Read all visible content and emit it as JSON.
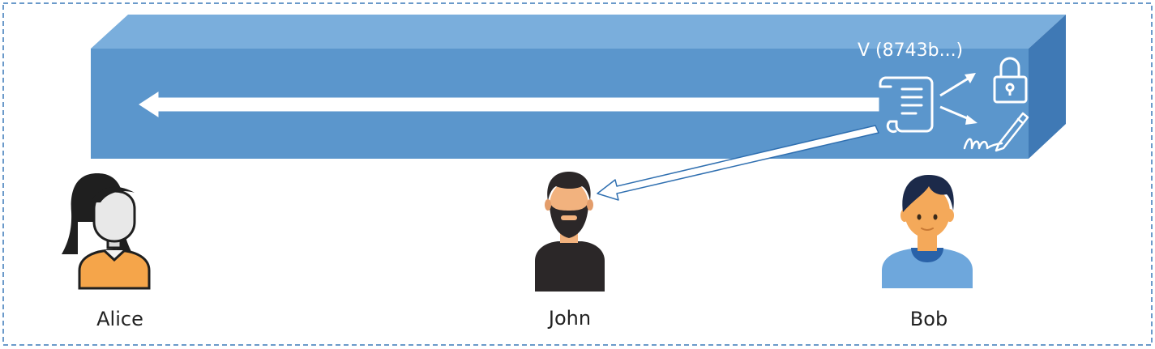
{
  "colors": {
    "frame_border": "#3a78b8",
    "bar_front": "#5b96cc",
    "bar_top": "#7aaedc",
    "bar_side": "#3f79b5",
    "arrow_fill": "#ffffff",
    "arrow_stroke": "#2f6fb0"
  },
  "block": {
    "version_label": "V (8743b...)",
    "icons": [
      "document-scroll-icon",
      "lock-icon",
      "signature-pen-icon"
    ]
  },
  "people": [
    {
      "name": "Alice",
      "avatar": "woman-avatar-icon"
    },
    {
      "name": "John",
      "avatar": "bearded-man-avatar-icon"
    },
    {
      "name": "Bob",
      "avatar": "boy-avatar-icon"
    }
  ]
}
